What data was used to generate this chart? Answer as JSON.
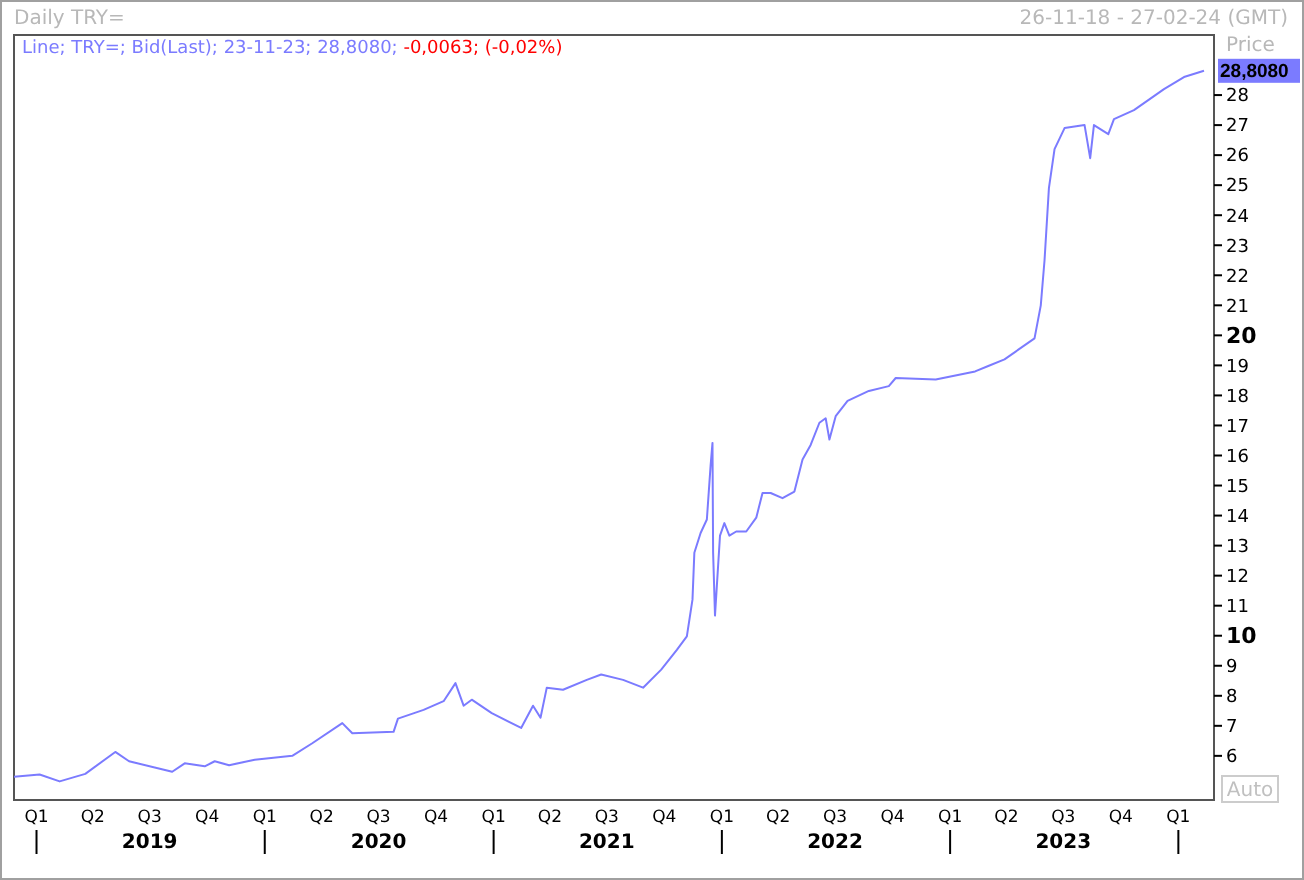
{
  "chart_data": {
    "type": "line",
    "title": "Daily TRY=",
    "subtitle": "26-11-18 - 27-02-24 (GMT)",
    "ylabel": "Price",
    "annotations": [
      "Line; TRY=; Bid(Last); 23-11-23; 28,8080; -0,0063; (-0,02%)",
      "2019",
      "2020",
      "2021",
      "2022",
      "2023",
      "28,8080",
      "Auto"
    ],
    "x": [
      "2018-11-26",
      "2019-01-06",
      "2019-02-07",
      "2019-03-20",
      "2019-05-07",
      "2019-05-29",
      "2019-08-06",
      "2019-08-26",
      "2019-09-27",
      "2019-10-13",
      "2019-11-05",
      "2019-12-16",
      "2020-02-14",
      "2020-03-17",
      "2020-05-04",
      "2020-05-20",
      "2020-07-25",
      "2020-08-01",
      "2020-09-11",
      "2020-10-13",
      "2020-11-01",
      "2020-11-14",
      "2020-11-27",
      "2020-12-29",
      "2021-02-14",
      "2021-03-05",
      "2021-03-17",
      "2021-03-27",
      "2021-04-22",
      "2021-05-30",
      "2021-06-22",
      "2021-07-27",
      "2021-08-28",
      "2021-09-26",
      "2021-10-21",
      "2021-11-06",
      "2021-11-15",
      "2021-11-18",
      "2021-11-28",
      "2021-12-08",
      "2021-12-14",
      "2021-12-17",
      "2021-12-18",
      "2021-12-21",
      "2021-12-29",
      "2022-01-05",
      "2022-01-13",
      "2022-01-24",
      "2022-02-09",
      "2022-02-25",
      "2022-03-07",
      "2022-03-20",
      "2022-04-08",
      "2022-04-27",
      "2022-05-10",
      "2022-05-23",
      "2022-06-06",
      "2022-06-16",
      "2022-06-22",
      "2022-07-02",
      "2022-07-21",
      "2022-08-24",
      "2022-09-25",
      "2022-10-06",
      "2022-12-09",
      "2023-02-10",
      "2023-03-03",
      "2023-03-29",
      "2023-05-16",
      "2023-05-26",
      "2023-06-01",
      "2023-06-08",
      "2023-06-17",
      "2023-07-03",
      "2023-08-04",
      "2023-08-13",
      "2023-08-19",
      "2023-09-11",
      "2023-09-20",
      "2023-10-22",
      "2023-12-09",
      "2024-01-10",
      "2024-02-11"
    ],
    "series": [
      {
        "color": "#7b7bff",
        "values": [
          5.3,
          5.38,
          5.15,
          5.4,
          6.13,
          5.82,
          5.47,
          5.75,
          5.65,
          5.82,
          5.69,
          5.87,
          6.0,
          6.42,
          7.09,
          6.75,
          6.8,
          7.24,
          7.53,
          7.82,
          8.42,
          7.67,
          7.87,
          7.42,
          6.93,
          7.67,
          7.27,
          8.27,
          8.2,
          8.53,
          8.71,
          8.53,
          8.27,
          8.87,
          9.53,
          9.98,
          11.2,
          12.76,
          13.42,
          13.87,
          15.67,
          16.42,
          12.76,
          10.67,
          13.33,
          13.75,
          13.33,
          13.47,
          13.47,
          13.93,
          14.75,
          14.75,
          14.58,
          14.8,
          15.87,
          16.35,
          17.09,
          17.24,
          16.53,
          17.31,
          17.82,
          18.15,
          18.31,
          18.58,
          18.53,
          18.8,
          18.98,
          19.2,
          19.9,
          21.0,
          22.5,
          24.9,
          26.2,
          26.9,
          27.0,
          25.9,
          27.0,
          26.7,
          27.2,
          27.5,
          28.2,
          28.6,
          28.808
        ]
      }
    ],
    "xlim": [
      "2018-11-26",
      "2024-02-27"
    ],
    "xticks": [
      {
        "value": "2019-01-01",
        "label": "Q1"
      },
      {
        "value": "2019-04-01",
        "label": "Q2"
      },
      {
        "value": "2019-07-01",
        "label": "Q3"
      },
      {
        "value": "2019-10-01",
        "label": "Q4"
      },
      {
        "value": "2020-01-01",
        "label": "Q1"
      },
      {
        "value": "2020-04-01",
        "label": "Q2"
      },
      {
        "value": "2020-07-01",
        "label": "Q3"
      },
      {
        "value": "2020-10-01",
        "label": "Q4"
      },
      {
        "value": "2021-01-01",
        "label": "Q1"
      },
      {
        "value": "2021-04-01",
        "label": "Q2"
      },
      {
        "value": "2021-07-01",
        "label": "Q3"
      },
      {
        "value": "2021-10-01",
        "label": "Q4"
      },
      {
        "value": "2022-01-01",
        "label": "Q1"
      },
      {
        "value": "2022-04-01",
        "label": "Q2"
      },
      {
        "value": "2022-07-01",
        "label": "Q3"
      },
      {
        "value": "2022-10-01",
        "label": "Q4"
      },
      {
        "value": "2023-01-01",
        "label": "Q1"
      },
      {
        "value": "2023-04-01",
        "label": "Q2"
      },
      {
        "value": "2023-07-01",
        "label": "Q3"
      },
      {
        "value": "2023-10-01",
        "label": "Q4"
      },
      {
        "value": "2024-01-01",
        "label": "Q1"
      }
    ],
    "ylim": [
      4.53,
      30
    ],
    "yticks": [
      6,
      7,
      8,
      9,
      10,
      11,
      12,
      13,
      14,
      15,
      16,
      17,
      18,
      19,
      20,
      21,
      22,
      23,
      24,
      25,
      26,
      27,
      28
    ],
    "grid": false,
    "marker": "none",
    "line_style": "solid"
  }
}
